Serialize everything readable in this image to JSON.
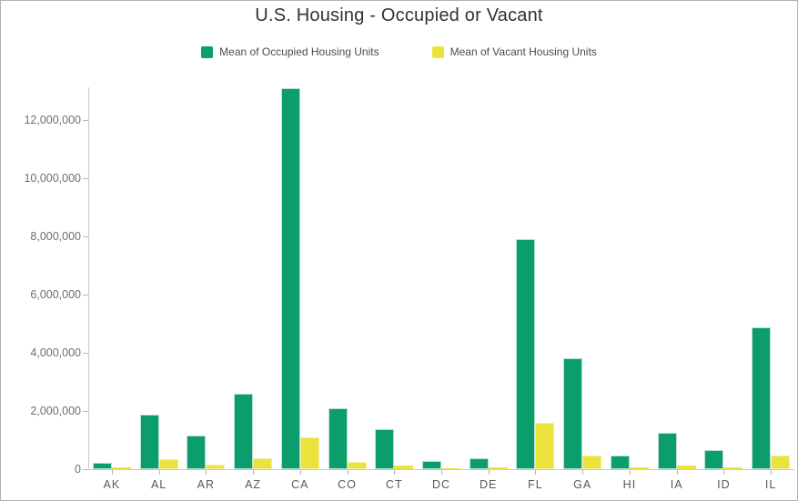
{
  "title": "U.S. Housing - Occupied or Vacant",
  "colors": {
    "occupied": "#0c9d6c",
    "occupied_edge": "#b7e0d1",
    "vacant": "#ece23c",
    "vacant_edge": "#f5efa4",
    "axis_line": "#c9c9c9",
    "tick": "#b5b5b5",
    "title_text": "#323232",
    "legend_text": "#4c4c4c",
    "y_label_text": "#6e6e6e",
    "x_label_text": "#595959",
    "frame_border": "#b2b2b2"
  },
  "chart_data": {
    "type": "bar",
    "title": "U.S. Housing - Occupied or Vacant",
    "xlabel": "",
    "ylabel": "",
    "grid": false,
    "legend_position": "top-center",
    "categories": [
      "AK",
      "AL",
      "AR",
      "AZ",
      "CA",
      "CO",
      "CT",
      "DC",
      "DE",
      "FL",
      "GA",
      "HI",
      "IA",
      "ID",
      "IL"
    ],
    "series": [
      {
        "id": "occupied",
        "name": "Mean of Occupied Housing Units",
        "color": "#0c9d6c",
        "edge_color": "#b7e0d1",
        "values": [
          220000,
          1870000,
          1150000,
          2600000,
          13100000,
          2100000,
          1380000,
          280000,
          360000,
          7900000,
          3800000,
          460000,
          1250000,
          650000,
          4870000
        ]
      },
      {
        "id": "vacant",
        "name": "Mean of Vacant Housing Units",
        "color": "#ece23c",
        "edge_color": "#f5efa4",
        "values": [
          55000,
          340000,
          170000,
          380000,
          1090000,
          250000,
          140000,
          35000,
          60000,
          1600000,
          470000,
          75000,
          130000,
          65000,
          470000
        ]
      }
    ],
    "ylim": [
      0,
      13100000
    ],
    "yticks": [
      0,
      2000000,
      4000000,
      6000000,
      8000000,
      10000000,
      12000000
    ],
    "ytick_labels": [
      "0",
      "2,000,000",
      "4,000,000",
      "6,000,000",
      "8,000,000",
      "10,000,000",
      "12,000,000"
    ]
  }
}
